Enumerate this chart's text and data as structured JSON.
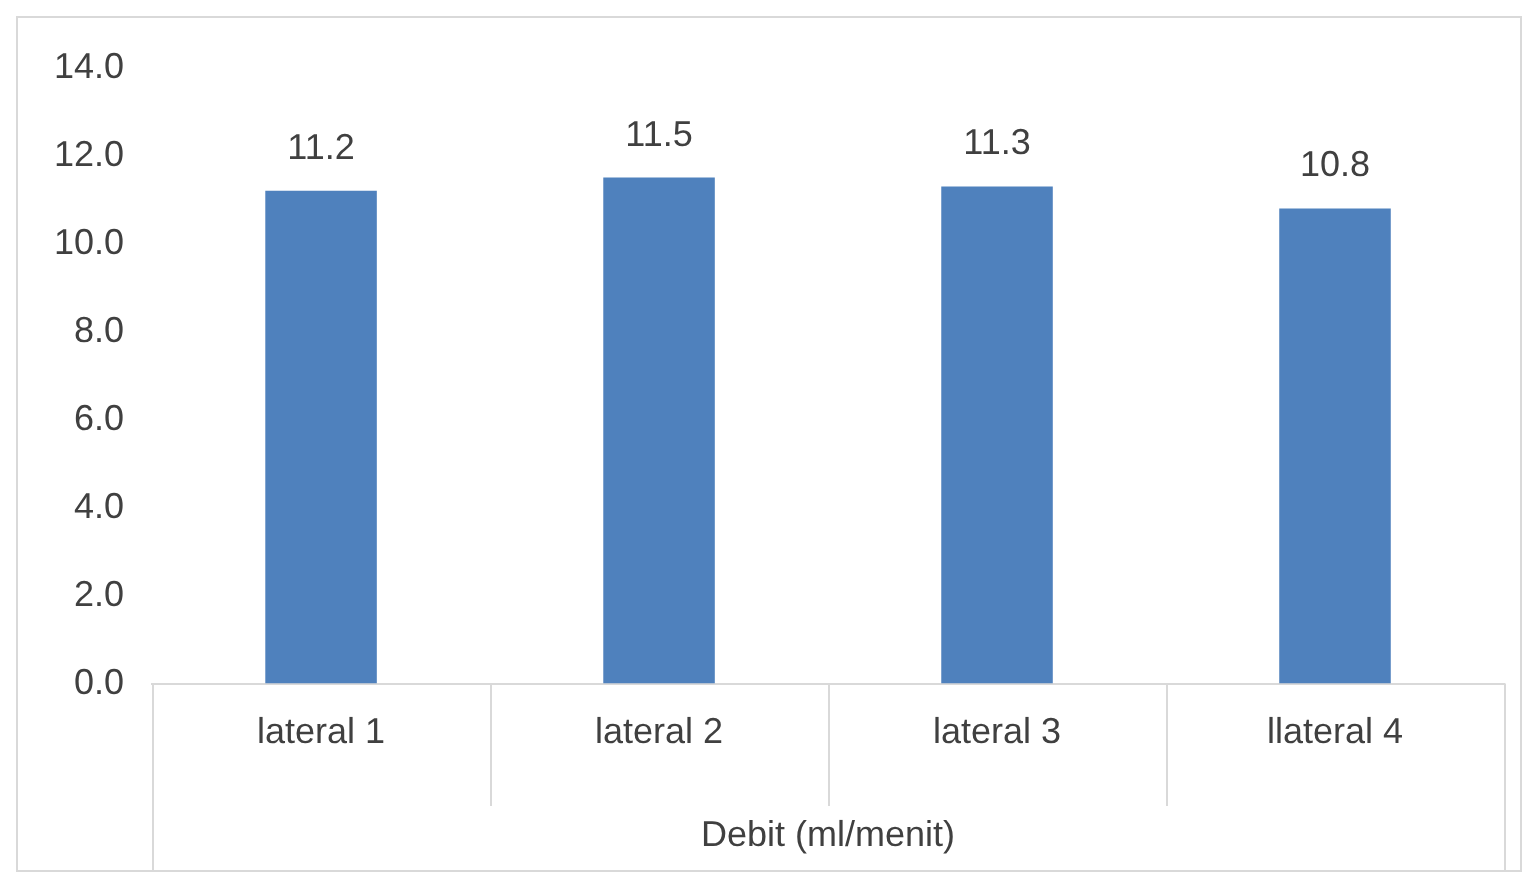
{
  "chart_data": {
    "type": "bar",
    "xlabel": "Debit (ml/menit)",
    "categories": [
      "lateral 1",
      "lateral 2",
      "lateral 3",
      "llateral 4"
    ],
    "values": [
      11.2,
      11.5,
      11.3,
      10.8
    ],
    "color": "#4f81bd",
    "ylim": [
      0,
      14
    ],
    "yticks": [
      {
        "value": 0,
        "label": "0.0"
      },
      {
        "value": 2,
        "label": "2.0"
      },
      {
        "value": 4,
        "label": "4.0"
      },
      {
        "value": 6,
        "label": "6.0"
      },
      {
        "value": 8,
        "label": "8.0"
      },
      {
        "value": 10,
        "label": "10.0"
      },
      {
        "value": 12,
        "label": "12.0"
      },
      {
        "value": 14,
        "label": "14.0"
      }
    ],
    "data_labels": true,
    "grid": false,
    "legend": false
  }
}
